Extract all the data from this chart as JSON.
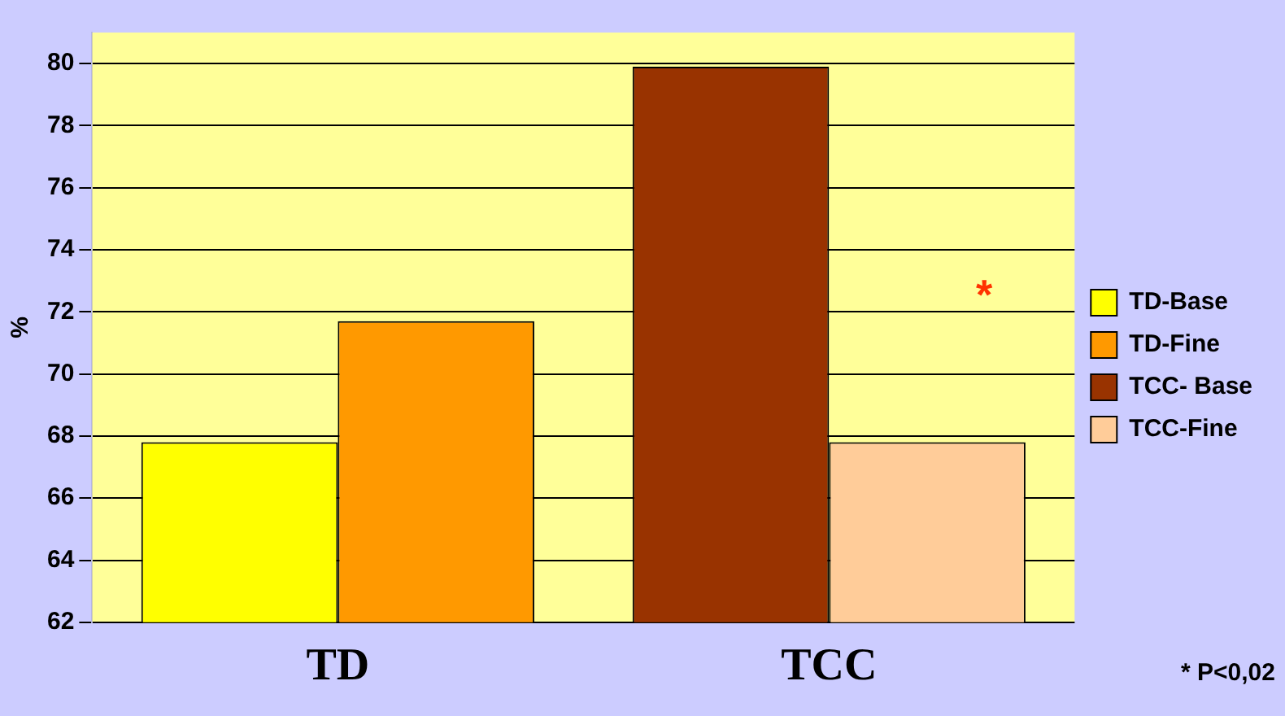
{
  "chart_data": {
    "type": "bar",
    "ylabel": "%",
    "categories": [
      "TD",
      "TCC"
    ],
    "series": [
      {
        "name": "TD-Base",
        "color": "#ffff00",
        "values": [
          67.8,
          null
        ]
      },
      {
        "name": "TD-Fine",
        "color": "#ff9900",
        "values": [
          71.7,
          null
        ]
      },
      {
        "name": "TCC- Base",
        "color": "#993300",
        "values": [
          null,
          79.9
        ]
      },
      {
        "name": "TCC-Fine",
        "color": "#ffcc99",
        "values": [
          null,
          67.8
        ]
      }
    ],
    "ylim": [
      62,
      81
    ],
    "yticks": [
      62,
      64,
      66,
      68,
      70,
      72,
      74,
      76,
      78,
      80
    ],
    "grid": "y",
    "legend": "right",
    "annotations": [
      "*",
      "* P<0,02"
    ]
  }
}
